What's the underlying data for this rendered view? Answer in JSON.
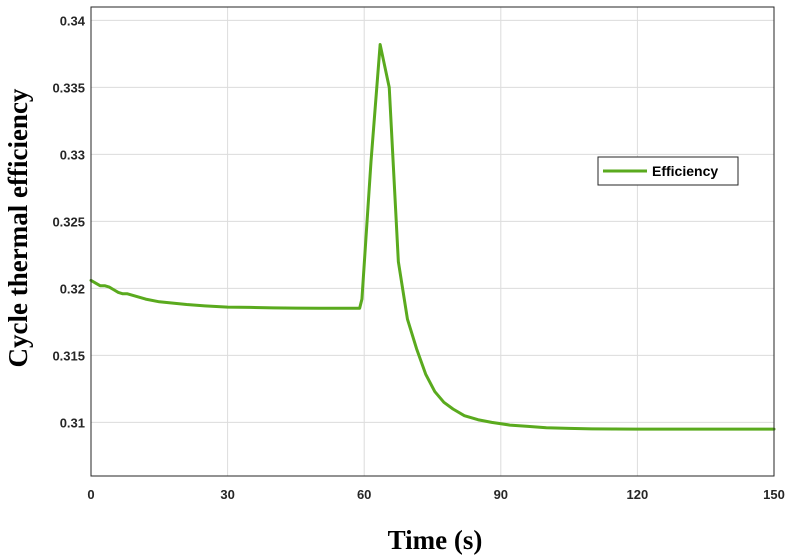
{
  "chart_data": {
    "type": "line",
    "xlabel": "Time (s)",
    "ylabel": "Cycle thermal efficiency",
    "xlim": [
      0,
      150
    ],
    "ylim": [
      0.306,
      0.341
    ],
    "xticks": [
      "0",
      "30",
      "60",
      "90",
      "120",
      "150"
    ],
    "yticks": [
      "0.31",
      "0.315",
      "0.32",
      "0.325",
      "0.33",
      "0.335",
      "0.34"
    ],
    "grid": true,
    "legend_position": "right",
    "series": [
      {
        "name": "Efficiency",
        "color": "#5aaa1e",
        "x": [
          0,
          1,
          2,
          3,
          4,
          5,
          6,
          7,
          8,
          10,
          12,
          15,
          18,
          21,
          25,
          30,
          35,
          40,
          45,
          50,
          55,
          59,
          59.5,
          61.5,
          63.5,
          65.5,
          67.5,
          69.5,
          71.5,
          73.5,
          75.5,
          77.5,
          79.5,
          82,
          85,
          88,
          92,
          96,
          100,
          105,
          110,
          120,
          130,
          140,
          150
        ],
        "y": [
          0.3206,
          0.3204,
          0.3202,
          0.3202,
          0.3201,
          0.3199,
          0.3197,
          0.3196,
          0.3196,
          0.3194,
          0.3192,
          0.319,
          0.3189,
          0.3188,
          0.3187,
          0.3186,
          0.31858,
          0.31855,
          0.31853,
          0.31852,
          0.31852,
          0.31852,
          0.3192,
          0.3295,
          0.3382,
          0.335,
          0.322,
          0.3177,
          0.3155,
          0.3136,
          0.3123,
          0.3115,
          0.311,
          0.3105,
          0.3102,
          0.31,
          0.3098,
          0.3097,
          0.3096,
          0.30955,
          0.30952,
          0.3095,
          0.3095,
          0.3095,
          0.3095
        ]
      }
    ]
  }
}
